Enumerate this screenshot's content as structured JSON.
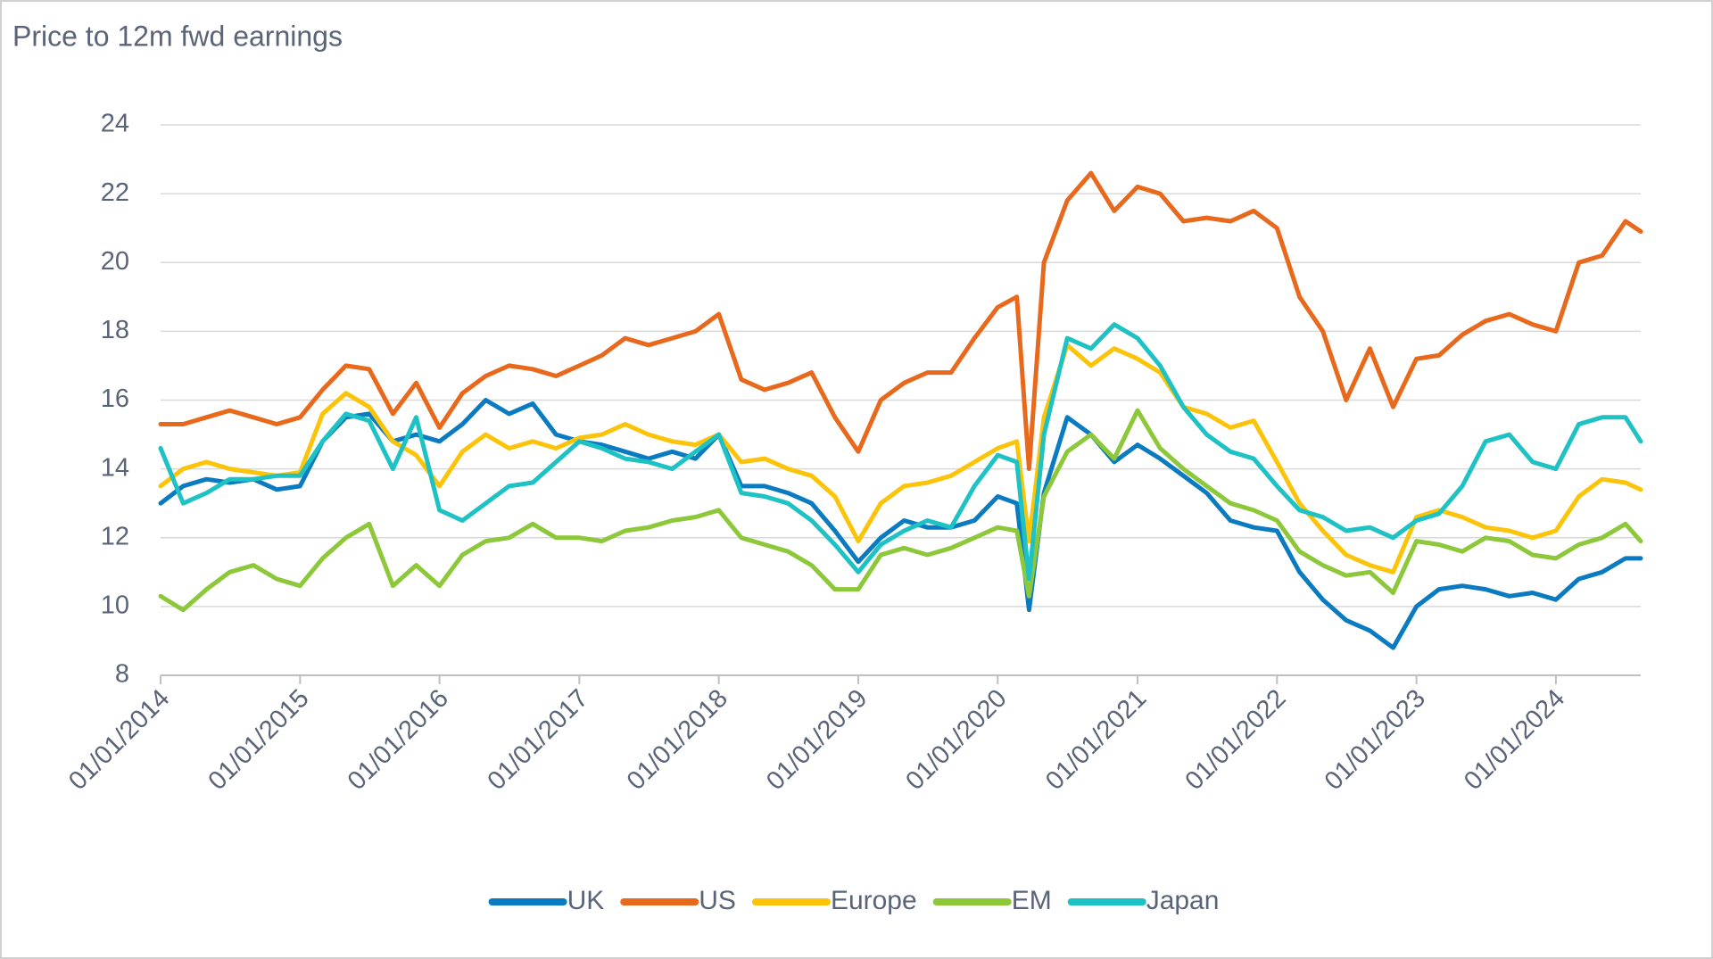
{
  "chart_data": {
    "type": "line",
    "title": "Price to 12m fwd earnings",
    "x": [
      "01/01/2014",
      "01/03/2014",
      "01/05/2014",
      "01/07/2014",
      "01/09/2014",
      "01/11/2014",
      "01/01/2015",
      "01/03/2015",
      "01/05/2015",
      "01/07/2015",
      "01/09/2015",
      "01/11/2015",
      "01/01/2016",
      "01/03/2016",
      "01/05/2016",
      "01/07/2016",
      "01/09/2016",
      "01/11/2016",
      "01/01/2017",
      "01/03/2017",
      "01/05/2017",
      "01/07/2017",
      "01/09/2017",
      "01/11/2017",
      "01/01/2018",
      "01/03/2018",
      "01/05/2018",
      "01/07/2018",
      "01/09/2018",
      "01/11/2018",
      "01/01/2019",
      "01/03/2019",
      "01/05/2019",
      "01/07/2019",
      "01/09/2019",
      "01/11/2019",
      "01/01/2020",
      "20/02/2020",
      "23/03/2020",
      "01/05/2020",
      "01/07/2020",
      "01/09/2020",
      "01/11/2020",
      "01/01/2021",
      "01/03/2021",
      "01/05/2021",
      "01/07/2021",
      "01/09/2021",
      "01/11/2021",
      "01/01/2022",
      "01/03/2022",
      "01/05/2022",
      "01/07/2022",
      "01/09/2022",
      "01/11/2022",
      "01/01/2023",
      "01/03/2023",
      "01/05/2023",
      "01/07/2023",
      "01/09/2023",
      "01/11/2023",
      "01/01/2024",
      "01/03/2024",
      "01/05/2024",
      "01/07/2024",
      "10/08/2024"
    ],
    "series": [
      {
        "name": "UK",
        "color": "#0a7bc1",
        "values": [
          13.0,
          13.5,
          13.7,
          13.6,
          13.7,
          13.4,
          13.5,
          14.8,
          15.5,
          15.6,
          14.8,
          15.0,
          14.8,
          15.3,
          16.0,
          15.6,
          15.9,
          15.0,
          14.8,
          14.7,
          14.5,
          14.3,
          14.5,
          14.3,
          15.0,
          13.5,
          13.5,
          13.3,
          13.0,
          12.2,
          11.3,
          12.0,
          12.5,
          12.3,
          12.3,
          12.5,
          13.2,
          13.0,
          9.9,
          13.3,
          15.5,
          15.0,
          14.2,
          14.7,
          14.3,
          13.8,
          13.3,
          12.5,
          12.3,
          12.2,
          11.0,
          10.2,
          9.6,
          9.3,
          8.8,
          10.0,
          10.5,
          10.6,
          10.5,
          10.3,
          10.4,
          10.2,
          10.8,
          11.0,
          11.4,
          11.4
        ]
      },
      {
        "name": "US",
        "color": "#e8681c",
        "values": [
          15.3,
          15.3,
          15.5,
          15.7,
          15.5,
          15.3,
          15.5,
          16.3,
          17.0,
          16.9,
          15.6,
          16.5,
          15.2,
          16.2,
          16.7,
          17.0,
          16.9,
          16.7,
          17.0,
          17.3,
          17.8,
          17.6,
          17.8,
          18.0,
          18.5,
          16.6,
          16.3,
          16.5,
          16.8,
          15.5,
          14.5,
          16.0,
          16.5,
          16.8,
          16.8,
          17.8,
          18.7,
          19.0,
          14.0,
          20.0,
          21.8,
          22.6,
          21.5,
          22.2,
          22.0,
          21.2,
          21.3,
          21.2,
          21.5,
          21.0,
          19.0,
          18.0,
          16.0,
          17.5,
          15.8,
          17.2,
          17.3,
          17.9,
          18.3,
          18.5,
          18.2,
          18.0,
          20.0,
          20.2,
          21.2,
          20.9
        ]
      },
      {
        "name": "Europe",
        "color": "#fbc40a",
        "values": [
          13.5,
          14.0,
          14.2,
          14.0,
          13.9,
          13.8,
          13.9,
          15.6,
          16.2,
          15.8,
          14.8,
          14.4,
          13.5,
          14.5,
          15.0,
          14.6,
          14.8,
          14.6,
          14.9,
          15.0,
          15.3,
          15.0,
          14.8,
          14.7,
          15.0,
          14.2,
          14.3,
          14.0,
          13.8,
          13.2,
          11.9,
          13.0,
          13.5,
          13.6,
          13.8,
          14.2,
          14.6,
          14.8,
          11.9,
          15.5,
          17.6,
          17.0,
          17.5,
          17.2,
          16.8,
          15.8,
          15.6,
          15.2,
          15.4,
          14.2,
          13.0,
          12.2,
          11.5,
          11.2,
          11.0,
          12.6,
          12.8,
          12.6,
          12.3,
          12.2,
          12.0,
          12.2,
          13.2,
          13.7,
          13.6,
          13.4
        ]
      },
      {
        "name": "EM",
        "color": "#8cc83a",
        "values": [
          10.3,
          9.9,
          10.5,
          11.0,
          11.2,
          10.8,
          10.6,
          11.4,
          12.0,
          12.4,
          10.6,
          11.2,
          10.6,
          11.5,
          11.9,
          12.0,
          12.4,
          12.0,
          12.0,
          11.9,
          12.2,
          12.3,
          12.5,
          12.6,
          12.8,
          12.0,
          11.8,
          11.6,
          11.2,
          10.5,
          10.5,
          11.5,
          11.7,
          11.5,
          11.7,
          12.0,
          12.3,
          12.2,
          10.3,
          13.2,
          14.5,
          15.0,
          14.3,
          15.7,
          14.6,
          14.0,
          13.5,
          13.0,
          12.8,
          12.5,
          11.6,
          11.2,
          10.9,
          11.0,
          10.4,
          11.9,
          11.8,
          11.6,
          12.0,
          11.9,
          11.5,
          11.4,
          11.8,
          12.0,
          12.4,
          11.9
        ]
      },
      {
        "name": "Japan",
        "color": "#1ec2c4",
        "values": [
          14.6,
          13.0,
          13.3,
          13.7,
          13.7,
          13.8,
          13.8,
          14.8,
          15.6,
          15.4,
          14.0,
          15.5,
          12.8,
          12.5,
          13.0,
          13.5,
          13.6,
          14.2,
          14.8,
          14.6,
          14.3,
          14.2,
          14.0,
          14.5,
          15.0,
          13.3,
          13.2,
          13.0,
          12.5,
          11.8,
          11.0,
          11.8,
          12.2,
          12.5,
          12.3,
          13.5,
          14.4,
          14.2,
          10.8,
          15.0,
          17.8,
          17.5,
          18.2,
          17.8,
          17.0,
          15.8,
          15.0,
          14.5,
          14.3,
          13.5,
          12.8,
          12.6,
          12.2,
          12.3,
          12.0,
          12.5,
          12.7,
          13.5,
          14.8,
          15.0,
          14.2,
          14.0,
          15.3,
          15.5,
          15.5,
          14.8
        ]
      }
    ],
    "xlim": [
      "01/01/2014",
      "10/08/2024"
    ],
    "xticks": [
      "01/01/2014",
      "01/01/2015",
      "01/01/2016",
      "01/01/2017",
      "01/01/2018",
      "01/01/2019",
      "01/01/2020",
      "01/01/2021",
      "01/01/2022",
      "01/01/2023",
      "01/01/2024"
    ],
    "ylim": [
      8,
      24
    ],
    "yticks": [
      8,
      10,
      12,
      14,
      16,
      18,
      20,
      22,
      24
    ],
    "grid": true,
    "legend": "bottom"
  }
}
